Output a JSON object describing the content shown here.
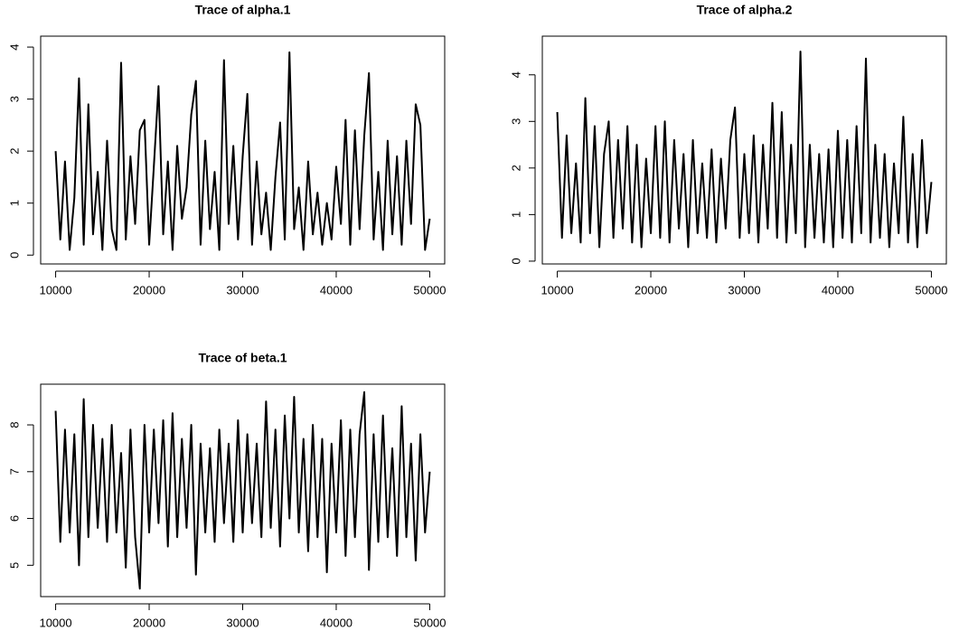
{
  "chart_data": [
    {
      "type": "line",
      "title": "Trace of alpha.1",
      "color": "#000000",
      "x": [
        10000,
        10500,
        11000,
        11500,
        12000,
        12500,
        13000,
        13500,
        14000,
        14500,
        15000,
        15500,
        16000,
        16500,
        17000,
        17500,
        18000,
        18500,
        19000,
        19500,
        20000,
        20500,
        21000,
        21500,
        22000,
        22500,
        23000,
        23500,
        24000,
        24500,
        25000,
        25500,
        26000,
        26500,
        27000,
        27500,
        28000,
        28500,
        29000,
        29500,
        30000,
        30500,
        31000,
        31500,
        32000,
        32500,
        33000,
        33500,
        34000,
        34500,
        35000,
        35500,
        36000,
        36500,
        37000,
        37500,
        38000,
        38500,
        39000,
        39500,
        40000,
        40500,
        41000,
        41500,
        42000,
        42500,
        43000,
        43500,
        44000,
        44500,
        45000,
        45500,
        46000,
        46500,
        47000,
        47500,
        48000,
        48500,
        49000,
        49500,
        50000
      ],
      "values": [
        2.0,
        0.3,
        1.8,
        0.1,
        1.1,
        3.4,
        0.2,
        2.9,
        0.4,
        1.6,
        0.1,
        2.2,
        0.5,
        0.1,
        3.7,
        0.3,
        1.9,
        0.6,
        2.4,
        2.6,
        0.2,
        1.7,
        3.25,
        0.4,
        1.8,
        0.1,
        2.1,
        0.7,
        1.3,
        2.7,
        3.35,
        0.2,
        2.2,
        0.5,
        1.6,
        0.1,
        3.75,
        0.6,
        2.1,
        0.3,
        1.9,
        3.1,
        0.2,
        1.8,
        0.4,
        1.2,
        0.1,
        1.5,
        2.55,
        0.3,
        3.9,
        0.5,
        1.3,
        0.1,
        1.8,
        0.4,
        1.2,
        0.2,
        1.0,
        0.3,
        1.7,
        0.6,
        2.6,
        0.2,
        2.4,
        0.5,
        2.3,
        3.5,
        0.3,
        1.6,
        0.1,
        2.2,
        0.4,
        1.9,
        0.2,
        2.2,
        0.6,
        2.9,
        2.5,
        0.1,
        0.7
      ],
      "xlim": [
        8400,
        51600
      ],
      "xticks": [
        10000,
        20000,
        30000,
        40000,
        50000
      ],
      "ylim": [
        -0.17,
        4.21
      ],
      "yticks": [
        0,
        1,
        2,
        3,
        4
      ]
    },
    {
      "type": "line",
      "title": "Trace of alpha.2",
      "color": "#000000",
      "x": [
        10000,
        10500,
        11000,
        11500,
        12000,
        12500,
        13000,
        13500,
        14000,
        14500,
        15000,
        15500,
        16000,
        16500,
        17000,
        17500,
        18000,
        18500,
        19000,
        19500,
        20000,
        20500,
        21000,
        21500,
        22000,
        22500,
        23000,
        23500,
        24000,
        24500,
        25000,
        25500,
        26000,
        26500,
        27000,
        27500,
        28000,
        28500,
        29000,
        29500,
        30000,
        30500,
        31000,
        31500,
        32000,
        32500,
        33000,
        33500,
        34000,
        34500,
        35000,
        35500,
        36000,
        36500,
        37000,
        37500,
        38000,
        38500,
        39000,
        39500,
        40000,
        40500,
        41000,
        41500,
        42000,
        42500,
        43000,
        43500,
        44000,
        44500,
        45000,
        45500,
        46000,
        46500,
        47000,
        47500,
        48000,
        48500,
        49000,
        49500,
        50000
      ],
      "values": [
        3.2,
        0.5,
        2.7,
        0.6,
        2.1,
        0.4,
        3.5,
        0.6,
        2.9,
        0.3,
        2.3,
        3.0,
        0.5,
        2.6,
        0.7,
        2.9,
        0.4,
        2.5,
        0.3,
        2.2,
        0.6,
        2.9,
        0.5,
        3.0,
        0.4,
        2.6,
        0.7,
        2.3,
        0.3,
        2.6,
        0.6,
        2.1,
        0.5,
        2.4,
        0.4,
        2.2,
        0.7,
        2.6,
        3.3,
        0.5,
        2.3,
        0.6,
        2.7,
        0.4,
        2.5,
        0.7,
        3.4,
        0.5,
        3.2,
        0.4,
        2.5,
        0.6,
        4.5,
        0.3,
        2.5,
        0.5,
        2.3,
        0.4,
        2.4,
        0.3,
        2.8,
        0.5,
        2.6,
        0.4,
        2.9,
        0.6,
        4.35,
        0.4,
        2.5,
        0.5,
        2.3,
        0.3,
        2.1,
        0.6,
        3.1,
        0.4,
        2.3,
        0.3,
        2.6,
        0.6,
        1.7
      ],
      "xlim": [
        8400,
        51600
      ],
      "xticks": [
        10000,
        20000,
        30000,
        40000,
        50000
      ],
      "ylim": [
        -0.06,
        4.83
      ],
      "yticks": [
        0,
        1,
        2,
        3,
        4
      ]
    },
    {
      "type": "line",
      "title": "Trace of beta.1",
      "color": "#000000",
      "x": [
        10000,
        10500,
        11000,
        11500,
        12000,
        12500,
        13000,
        13500,
        14000,
        14500,
        15000,
        15500,
        16000,
        16500,
        17000,
        17500,
        18000,
        18500,
        19000,
        19500,
        20000,
        20500,
        21000,
        21500,
        22000,
        22500,
        23000,
        23500,
        24000,
        24500,
        25000,
        25500,
        26000,
        26500,
        27000,
        27500,
        28000,
        28500,
        29000,
        29500,
        30000,
        30500,
        31000,
        31500,
        32000,
        32500,
        33000,
        33500,
        34000,
        34500,
        35000,
        35500,
        36000,
        36500,
        37000,
        37500,
        38000,
        38500,
        39000,
        39500,
        40000,
        40500,
        41000,
        41500,
        42000,
        42500,
        43000,
        43500,
        44000,
        44500,
        45000,
        45500,
        46000,
        46500,
        47000,
        47500,
        48000,
        48500,
        49000,
        49500,
        50000
      ],
      "values": [
        8.3,
        5.5,
        7.9,
        5.7,
        7.8,
        5.0,
        8.55,
        5.6,
        8.0,
        5.8,
        7.7,
        5.5,
        8.0,
        5.7,
        7.4,
        4.95,
        7.9,
        5.6,
        4.5,
        8.0,
        5.7,
        7.9,
        5.9,
        8.1,
        5.4,
        8.25,
        5.6,
        7.7,
        5.8,
        8.0,
        4.8,
        7.6,
        5.7,
        7.5,
        5.5,
        7.9,
        5.9,
        7.6,
        5.5,
        8.1,
        5.7,
        7.8,
        5.9,
        7.6,
        5.6,
        8.5,
        5.8,
        7.9,
        5.4,
        8.2,
        6.0,
        8.6,
        5.7,
        7.7,
        5.3,
        8.0,
        5.6,
        7.7,
        4.85,
        7.6,
        5.7,
        8.1,
        5.2,
        7.9,
        5.6,
        7.8,
        8.7,
        4.9,
        7.8,
        5.5,
        8.2,
        5.6,
        7.5,
        5.2,
        8.4,
        5.6,
        7.6,
        5.1,
        7.8,
        5.7,
        7.0
      ],
      "xlim": [
        8400,
        51600
      ],
      "xticks": [
        10000,
        20000,
        30000,
        40000,
        50000
      ],
      "ylim": [
        4.33,
        8.87
      ],
      "yticks": [
        5,
        6,
        7,
        8
      ]
    }
  ]
}
